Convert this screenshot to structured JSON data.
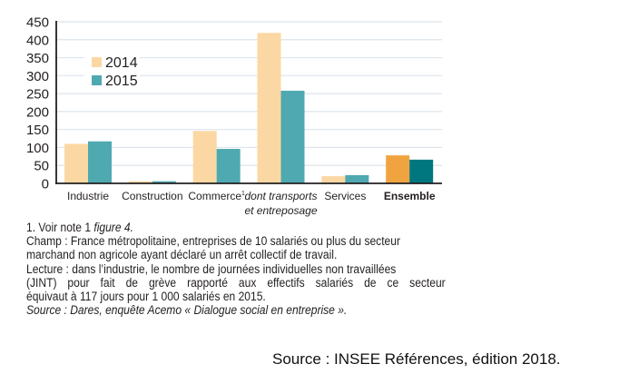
{
  "chart_data": {
    "type": "bar",
    "title": "",
    "xlabel": "",
    "ylabel": "",
    "ylim": [
      0,
      450
    ],
    "yticks": [
      0,
      50,
      100,
      150,
      200,
      250,
      300,
      350,
      400,
      450
    ],
    "grid": true,
    "legend_position": "top-left",
    "categories": [
      {
        "label": "Industrie",
        "superscript": "",
        "style": "normal"
      },
      {
        "label": "Construction",
        "superscript": "",
        "style": "normal"
      },
      {
        "label": "Commerce",
        "superscript": "1",
        "style": "normal"
      },
      {
        "label": "dont transports",
        "label_line2": "et entreposage",
        "superscript": "",
        "style": "italic"
      },
      {
        "label": "Services",
        "superscript": "",
        "style": "normal"
      },
      {
        "label": "Ensemble",
        "superscript": "",
        "style": "bold"
      }
    ],
    "series": [
      {
        "name": "2014",
        "color": "#fbd8a3",
        "highlight_color": "#f0a440",
        "values": [
          110,
          6,
          146,
          419,
          20,
          78
        ]
      },
      {
        "name": "2015",
        "color": "#4fa9b0",
        "highlight_color": "#00777f",
        "values": [
          117,
          6,
          96,
          258,
          23,
          66
        ]
      }
    ],
    "highlight_category_index": 5
  },
  "notes": {
    "note1_prefix": "1. Voir note 1 ",
    "note1_italic": "figure 4.",
    "champ_line1": "Champ : France métropolitaine, entreprises de 10 salariés ou plus du secteur",
    "champ_line2": "marchand non agricole ayant déclaré un arrêt collectif de travail.",
    "lecture_line1": "Lecture : dans l’industrie, le nombre de journées individuelles non travaillées",
    "lecture_line2": "(JINT) pour fait de grève rapporté aux effectifs salariés de ce secteur",
    "lecture_line3": "équivaut à 117 jours pour 1 000 salariés en 2015.",
    "source": "Source : Dares, enquête Acemo « Dialogue social en entreprise »."
  },
  "footer": {
    "source": "Source : INSEE Références, édition 2018."
  },
  "colors": {
    "grid": "#dce4ec",
    "axis": "#231f20",
    "text": "#231f20"
  }
}
